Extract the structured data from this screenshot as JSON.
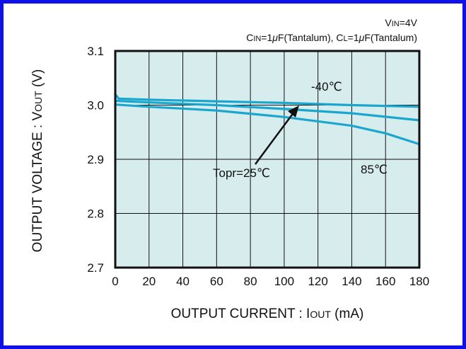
{
  "conditions": {
    "line1": {
      "main": "V",
      "sub": "IN",
      "rest": "=4V"
    },
    "line2": {
      "c1": "C",
      "c1_sub": "IN",
      "c1_rest": "=1",
      "mu1": "μ",
      "f1": "F(Tantalum), ",
      "c2": "C",
      "c2_sub": "L",
      "c2_rest": "=1",
      "mu2": "μ",
      "f2": "F(Tantalum)"
    }
  },
  "axes": {
    "xlabel": {
      "main": "OUTPUT CURRENT : I",
      "sub": "OUT",
      "unit": " (mA)"
    },
    "ylabel": {
      "main": "OUTPUT VOLTAGE : V",
      "sub": "OUT",
      "unit": " (V)"
    }
  },
  "annotations": {
    "cold": "-40℃",
    "room": "Topr=25℃",
    "hot": "85℃"
  },
  "colors": {
    "plot_bg": "#d7ecec",
    "curve": "#1aa7cf",
    "grid": "#111111",
    "frame_border": "#1010e8"
  },
  "chart_data": {
    "type": "line",
    "xlim": [
      0,
      180
    ],
    "ylim": [
      2.7,
      3.1
    ],
    "x_ticks": [
      "0",
      "20",
      "40",
      "60",
      "80",
      "100",
      "120",
      "140",
      "160",
      "180"
    ],
    "y_ticks": [
      "3.1",
      "3.0",
      "2.9",
      "2.8",
      "2.7"
    ],
    "grid": true,
    "series": [
      {
        "name": "-40℃",
        "x": [
          0,
          2,
          20,
          60,
          100,
          140,
          180
        ],
        "y": [
          3.02,
          3.012,
          3.01,
          3.007,
          3.004,
          3.0,
          2.997
        ]
      },
      {
        "name": "Topr=25℃",
        "x": [
          0,
          20,
          60,
          100,
          140,
          180
        ],
        "y": [
          3.008,
          3.005,
          3.0,
          2.993,
          2.985,
          2.972
        ]
      },
      {
        "name": "85℃",
        "x": [
          0,
          20,
          60,
          100,
          140,
          160,
          180
        ],
        "y": [
          3.001,
          2.997,
          2.99,
          2.978,
          2.962,
          2.948,
          2.928
        ]
      }
    ]
  }
}
